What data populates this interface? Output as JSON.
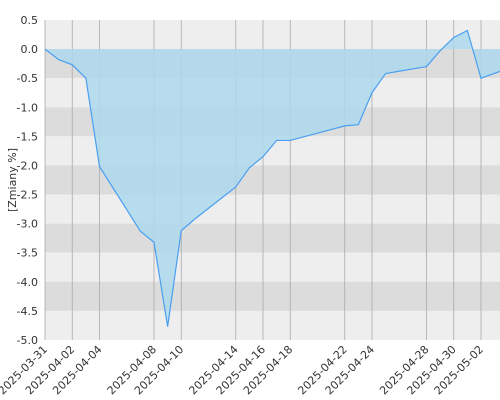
{
  "chart_data": {
    "type": "area",
    "title": "",
    "xlabel": "",
    "ylabel": "[Zmiany %]",
    "ylim": [
      -5.0,
      0.5
    ],
    "yticks": [
      "0.5",
      "0.0",
      "-0.5",
      "-1.0",
      "-1.5",
      "-2.0",
      "-2.5",
      "-3.0",
      "-3.5",
      "-4.0",
      "-4.5",
      "-5.0"
    ],
    "xticks": [
      "2025-03-31",
      "2025-04-02",
      "2025-04-04",
      "2025-04-08",
      "2025-04-10",
      "2025-04-14",
      "2025-04-16",
      "2025-04-18",
      "2025-04-22",
      "2025-04-24",
      "2025-04-28",
      "2025-04-30",
      "2025-05-02"
    ],
    "grid": true,
    "legend": "none",
    "colors": {
      "line": "#4a9ff0",
      "fill": "#add8ec",
      "band_light": "#eeeeee",
      "band_dark": "#dcdcdc",
      "grid": "#aaaaaa"
    },
    "series": [
      {
        "x": [
          "2025-03-31",
          "2025-04-01",
          "2025-04-02",
          "2025-04-03",
          "2025-04-04",
          "2025-04-07",
          "2025-04-08",
          "2025-04-09",
          "2025-04-10",
          "2025-04-11",
          "2025-04-14",
          "2025-04-15",
          "2025-04-16",
          "2025-04-17",
          "2025-04-18",
          "2025-04-22",
          "2025-04-23",
          "2025-04-24",
          "2025-04-25",
          "2025-04-28",
          "2025-04-29",
          "2025-04-30",
          "2025-05-01",
          "2025-05-02",
          "2025-05-05"
        ],
        "values": [
          0.0,
          -0.18,
          -0.27,
          -0.5,
          -2.02,
          -3.13,
          -3.32,
          -4.77,
          -3.12,
          -2.92,
          -2.37,
          -2.04,
          -1.85,
          -1.57,
          -1.57,
          -1.32,
          -1.3,
          -0.75,
          -0.42,
          -0.3,
          -0.03,
          0.2,
          0.32,
          -0.5,
          -0.25
        ]
      }
    ]
  }
}
